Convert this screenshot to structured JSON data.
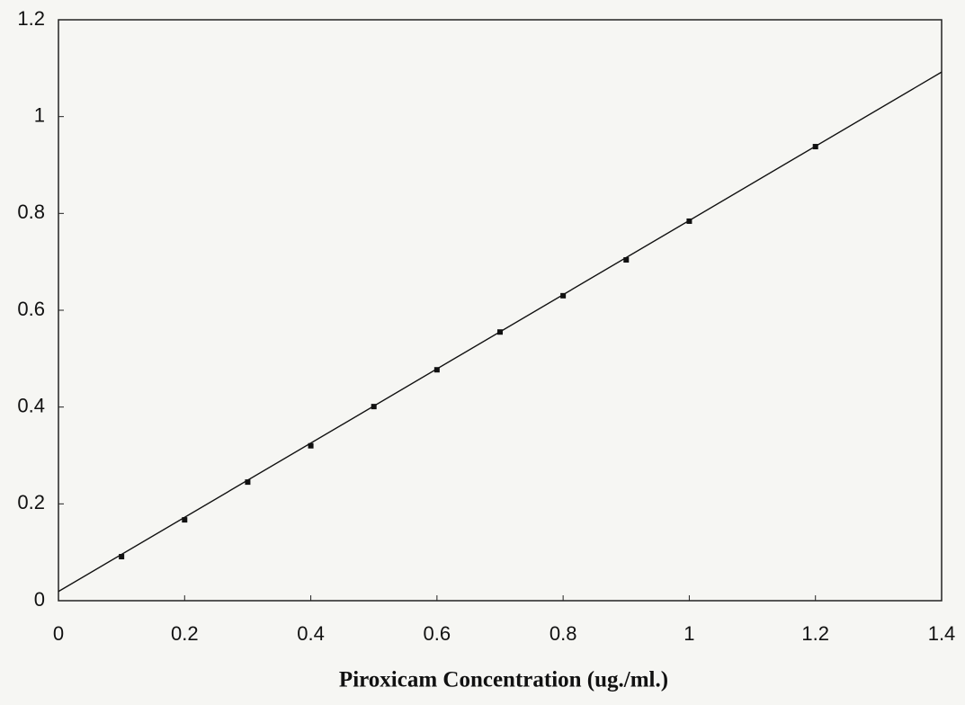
{
  "chart_data": {
    "type": "scatter",
    "x_axis_label": "Piroxicam Concentration (ug./ml.)",
    "x": [
      0.1,
      0.2,
      0.3,
      0.4,
      0.5,
      0.6,
      0.7,
      0.8,
      0.9,
      1.0,
      1.2
    ],
    "values": [
      0.091,
      0.167,
      0.245,
      0.32,
      0.401,
      0.477,
      0.555,
      0.63,
      0.704,
      0.784,
      0.938
    ],
    "color": "#111111",
    "fit": {
      "x": [
        0,
        1.4
      ],
      "values": [
        0.019,
        1.092
      ]
    },
    "xlim": [
      0,
      1.4
    ],
    "xticks": [
      0,
      0.2,
      0.4,
      0.6,
      0.8,
      1,
      1.2,
      1.4
    ],
    "ylim": [
      0,
      1.2
    ],
    "yticks": [
      0,
      0.2,
      0.4,
      0.6,
      0.8,
      1,
      1.2
    ],
    "grid": false
  }
}
